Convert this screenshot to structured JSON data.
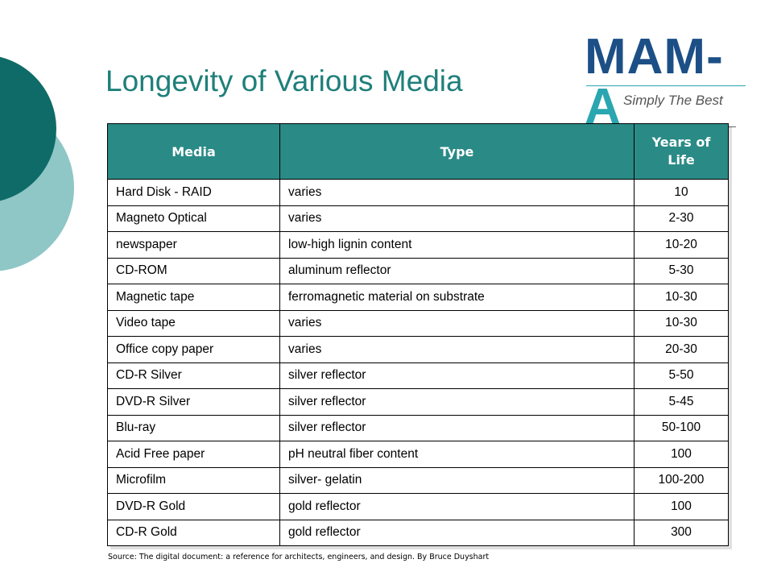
{
  "slide": {
    "title": "Longevity of Various Media",
    "source": "Source:  The digital document: a reference for architects, engineers, and design.  By Bruce Duyshart"
  },
  "logo": {
    "wordmark_main": "MAM-",
    "wordmark_accent": "A",
    "tagline": "Simply The Best"
  },
  "colors": {
    "title": "#1f7f7a",
    "header_fill": "#2a8a86",
    "circle_dark": "#0f6b67",
    "circle_light": "#8fc7c6",
    "logo_blue": "#1c4f86",
    "logo_teal": "#2aa6b0"
  },
  "table": {
    "headers": {
      "media": "Media",
      "type": "Type",
      "years": "Years of Life"
    },
    "rows": [
      {
        "media": "Hard Disk - RAID",
        "type": "varies",
        "years": "10"
      },
      {
        "media": "Magneto Optical",
        "type": "varies",
        "years": "2-30"
      },
      {
        "media": "newspaper",
        "type": "low-high lignin content",
        "years": "10-20"
      },
      {
        "media": "CD-ROM",
        "type": "aluminum reflector",
        "years": "5-30"
      },
      {
        "media": "Magnetic tape",
        "type": "ferromagnetic material on substrate",
        "years": "10-30"
      },
      {
        "media": "Video tape",
        "type": "varies",
        "years": "10-30"
      },
      {
        "media": "Office copy paper",
        "type": "varies",
        "years": "20-30"
      },
      {
        "media": "CD-R Silver",
        "type": "silver reflector",
        "years": "5-50"
      },
      {
        "media": "DVD-R Silver",
        "type": "silver reflector",
        "years": "5-45"
      },
      {
        "media": "Blu-ray",
        "type": "silver reflector",
        "years": "50-100"
      },
      {
        "media": "Acid Free paper",
        "type": "pH neutral fiber content",
        "years": "100"
      },
      {
        "media": "Microfilm",
        "type": "silver- gelatin",
        "years": "100-200"
      },
      {
        "media": "DVD-R Gold",
        "type": "gold reflector",
        "years": "100"
      },
      {
        "media": "CD-R Gold",
        "type": "gold reflector",
        "years": "300"
      }
    ]
  }
}
